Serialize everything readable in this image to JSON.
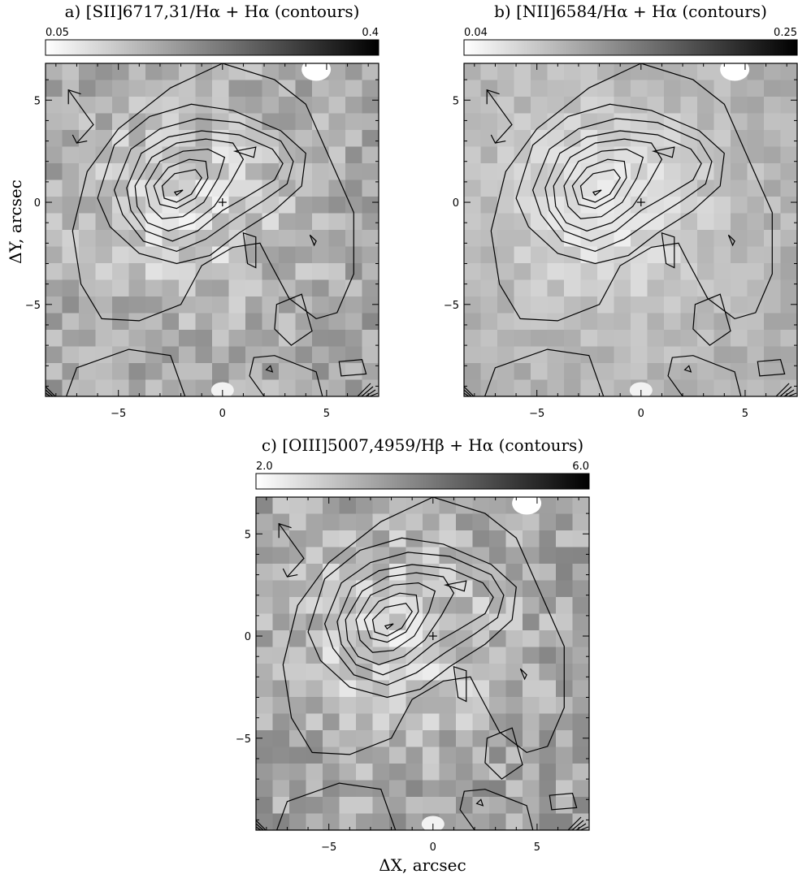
{
  "chart_data": [
    {
      "type": "heatmap",
      "panel": "a",
      "title": "a) [SII]6717,31/Hα + Hα (contours)",
      "colorbar": {
        "min_label": "0.05",
        "max_label": "0.4",
        "range": [
          0.05,
          0.4
        ],
        "colormap": "white-to-black"
      },
      "xlabel": "",
      "ylabel": "ΔY, arcsec",
      "xlim": [
        -8.5,
        7.5
      ],
      "ylim": [
        -9.5,
        6.8
      ],
      "xticks": [
        -5,
        0,
        5
      ],
      "yticks": [
        -5,
        0,
        5
      ],
      "xtick_labels": [
        "−5",
        "0",
        "5"
      ],
      "ytick_labels": [
        "−5",
        "0",
        "5"
      ],
      "contour_levels": 8,
      "contour_peak": [
        -2.2,
        0.4
      ],
      "center_marker": [
        0,
        0
      ]
    },
    {
      "type": "heatmap",
      "panel": "b",
      "title": "b) [NII]6584/Hα + Hα (contours)",
      "colorbar": {
        "min_label": "0.04",
        "max_label": "0.25",
        "range": [
          0.04,
          0.25
        ],
        "colormap": "white-to-black"
      },
      "xlabel": "",
      "ylabel": "",
      "xlim": [
        -8.5,
        7.5
      ],
      "ylim": [
        -9.5,
        6.8
      ],
      "xticks": [
        -5,
        0,
        5
      ],
      "yticks": [
        -5,
        0,
        5
      ],
      "xtick_labels": [
        "−5",
        "0",
        "5"
      ],
      "ytick_labels": [
        "−5",
        "0",
        "5"
      ],
      "contour_levels": 8,
      "contour_peak": [
        -2.2,
        0.4
      ],
      "center_marker": [
        0,
        0
      ]
    },
    {
      "type": "heatmap",
      "panel": "c",
      "title": "c) [OIII]5007,4959/Hβ + Hα (contours)",
      "colorbar": {
        "min_label": "2.0",
        "max_label": "6.0",
        "range": [
          2.0,
          6.0
        ],
        "colormap": "white-to-black"
      },
      "xlabel": "ΔX, arcsec",
      "ylabel": "",
      "xlim": [
        -8.5,
        7.5
      ],
      "ylim": [
        -9.5,
        6.8
      ],
      "xticks": [
        -5,
        0,
        5
      ],
      "yticks": [
        -5,
        0,
        5
      ],
      "xtick_labels": [
        "−5",
        "0",
        "5"
      ],
      "ytick_labels": [
        "−5",
        "0",
        "5"
      ],
      "contour_levels": 8,
      "contour_peak": [
        -2.2,
        0.4
      ],
      "center_marker": [
        0,
        0
      ]
    }
  ]
}
